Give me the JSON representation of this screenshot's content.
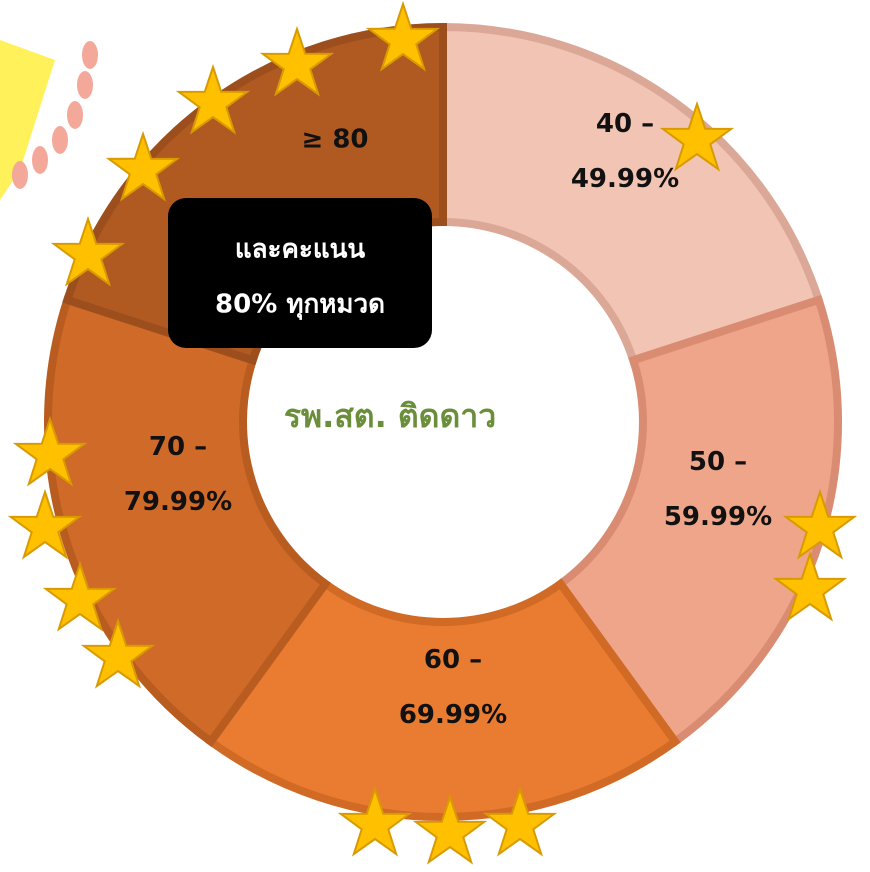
{
  "segments": [
    {
      "label_lines": [
        "40 –",
        "49.99%"
      ]
    },
    {
      "label_lines": [
        "50 –",
        "59.99%"
      ]
    },
    {
      "label_lines": [
        "60 –",
        "69.99%"
      ]
    },
    {
      "label_lines": [
        "70 –",
        "79.99%"
      ]
    },
    {
      "label_lines": [
        "≥ 80"
      ]
    }
  ],
  "callout_lines": [
    "และคะแนน",
    "80% ทุกหมวด"
  ],
  "center_label": "รพ.สต. ติดดาว"
}
